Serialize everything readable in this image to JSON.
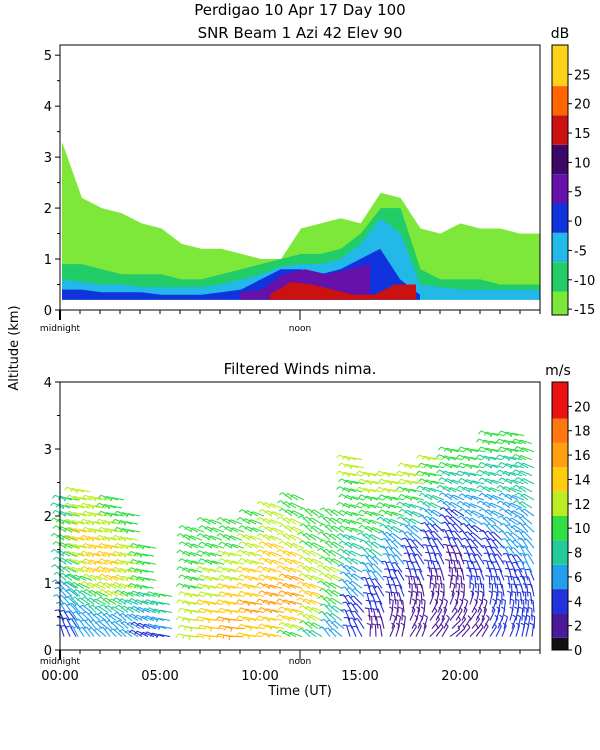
{
  "header": {
    "title_line1": "Perdigao  10 Apr 17 Day 100",
    "title_line2": "SNR Beam 1 Azi  42 Elev 90"
  },
  "shared": {
    "y_axis_label": "Altitude (km)",
    "x_axis_label": "Time (UT)",
    "x_ticks": [
      "00:00",
      "05:00",
      "10:00",
      "15:00",
      "20:00"
    ],
    "x_markers": [
      "midnight",
      "noon"
    ]
  },
  "chart_data": [
    {
      "type": "heatmap",
      "title": "SNR Beam 1 Azi  42 Elev 90",
      "xlabel": "Time (UT)",
      "ylabel": "Altitude (km)",
      "x_range_hours": [
        0,
        24
      ],
      "ylim": [
        0,
        5.2
      ],
      "y_ticks": [
        0,
        1,
        2,
        3,
        4,
        5
      ],
      "colorbar": {
        "unit": "dB",
        "range": [
          -16,
          30
        ],
        "tick_labels": [
          25,
          20,
          15,
          10,
          5,
          0,
          -5,
          -10,
          -15
        ],
        "bins": [
          {
            "from": -16,
            "to": -12,
            "color": "#7ee83a"
          },
          {
            "from": -12,
            "to": -7,
            "color": "#22cc66"
          },
          {
            "from": -7,
            "to": -2,
            "color": "#22b8e8"
          },
          {
            "from": -2,
            "to": 3,
            "color": "#1133dd"
          },
          {
            "from": 3,
            "to": 8,
            "color": "#6611aa"
          },
          {
            "from": 8,
            "to": 13,
            "color": "#3a0a66"
          },
          {
            "from": 13,
            "to": 18,
            "color": "#cc1111"
          },
          {
            "from": 18,
            "to": 23,
            "color": "#ff6600"
          },
          {
            "from": 23,
            "to": 30,
            "color": "#ffd21a"
          }
        ]
      },
      "regions": [
        {
          "level": -14,
          "t_start": 0.1,
          "t_end": 24,
          "alt_top": [
            3.3,
            2.2,
            2.0,
            1.9,
            1.7,
            1.6,
            1.3,
            1.2,
            1.2,
            1.1,
            1.0,
            1.0,
            1.6,
            1.7,
            1.8,
            1.7,
            2.3,
            2.2,
            1.6,
            1.5,
            1.7,
            1.6,
            1.6,
            1.5,
            1.5
          ]
        },
        {
          "level": -10,
          "t_start": 0.1,
          "t_end": 24,
          "alt_top": [
            0.9,
            0.9,
            0.8,
            0.7,
            0.7,
            0.7,
            0.6,
            0.6,
            0.7,
            0.8,
            0.9,
            1.0,
            1.1,
            1.1,
            1.2,
            1.5,
            2.0,
            2.0,
            0.8,
            0.6,
            0.6,
            0.6,
            0.5,
            0.5,
            0.5
          ]
        },
        {
          "level": -5,
          "t_start": 0.1,
          "t_end": 24,
          "alt_top": [
            0.6,
            0.55,
            0.5,
            0.5,
            0.45,
            0.45,
            0.45,
            0.45,
            0.5,
            0.6,
            0.7,
            0.85,
            0.9,
            0.9,
            1.0,
            1.3,
            1.8,
            1.5,
            0.5,
            0.45,
            0.4,
            0.4,
            0.4,
            0.4,
            0.4
          ]
        },
        {
          "level": 0,
          "t_start": 0.1,
          "t_end": 18,
          "alt_top": [
            0.4,
            0.4,
            0.35,
            0.35,
            0.35,
            0.3,
            0.3,
            0.3,
            0.35,
            0.4,
            0.6,
            0.8,
            0.8,
            0.7,
            0.8,
            1.0,
            1.2,
            0.6,
            0.3
          ]
        },
        {
          "level": 5,
          "t_start": 9.0,
          "t_end": 15.5,
          "alt_top": [
            0.35,
            0.4,
            0.7,
            0.8,
            0.7,
            0.8,
            0.9
          ]
        },
        {
          "level": 15,
          "t_start": 10.5,
          "t_end": 17.8,
          "alt_top": [
            0.3,
            0.55,
            0.5,
            0.4,
            0.3,
            0.3,
            0.5,
            0.5
          ]
        }
      ]
    },
    {
      "type": "scatter",
      "title": "Filtered Winds nima.",
      "xlabel": "Time (UT)",
      "ylabel": "Altitude (km)",
      "x_range_hours": [
        0,
        24
      ],
      "ylim": [
        0,
        4
      ],
      "y_ticks": [
        0,
        1,
        2,
        3,
        4
      ],
      "colorbar": {
        "unit": "m/s",
        "range": [
          0,
          22
        ],
        "tick_labels": [
          20,
          18,
          16,
          14,
          12,
          10,
          8,
          6,
          4,
          2,
          0
        ],
        "bins": [
          {
            "from": 0,
            "to": 1,
            "color": "#111111"
          },
          {
            "from": 1,
            "to": 3,
            "color": "#4a1a99"
          },
          {
            "from": 3,
            "to": 5,
            "color": "#2233dd"
          },
          {
            "from": 5,
            "to": 7,
            "color": "#22a0ee"
          },
          {
            "from": 7,
            "to": 9,
            "color": "#22cc99"
          },
          {
            "from": 9,
            "to": 11,
            "color": "#33dd44"
          },
          {
            "from": 11,
            "to": 13,
            "color": "#bbee22"
          },
          {
            "from": 13,
            "to": 15,
            "color": "#ffcc11"
          },
          {
            "from": 15,
            "to": 17,
            "color": "#ffa011"
          },
          {
            "from": 17,
            "to": 19,
            "color": "#ff7711"
          },
          {
            "from": 19,
            "to": 22,
            "color": "#ee1111"
          }
        ]
      },
      "wind_profiles": [
        {
          "t": 0.5,
          "alt_max": 2.2,
          "speed": [
            4,
            5,
            5,
            7,
            8,
            9,
            9,
            9,
            8
          ],
          "dir": [
            200,
            210,
            220,
            230,
            235,
            240,
            240,
            245,
            250
          ]
        },
        {
          "t": 1.2,
          "alt_max": 2.4,
          "speed": [
            5,
            6,
            8,
            10,
            12,
            13,
            13,
            12,
            11
          ],
          "dir": [
            210,
            220,
            230,
            240,
            245,
            250,
            250,
            250,
            250
          ]
        },
        {
          "t": 2.0,
          "alt_max": 2.3,
          "speed": [
            6,
            7,
            9,
            12,
            14,
            14,
            13,
            12,
            11
          ],
          "dir": [
            220,
            225,
            235,
            240,
            245,
            250,
            250,
            250,
            250
          ]
        },
        {
          "t": 2.8,
          "alt_max": 2.3,
          "speed": [
            5,
            7,
            10,
            13,
            14,
            14,
            12,
            11,
            10
          ],
          "dir": [
            220,
            230,
            235,
            240,
            245,
            250,
            250,
            250,
            250
          ]
        },
        {
          "t": 3.6,
          "alt_max": 2.0,
          "speed": [
            5,
            6,
            9,
            12,
            13,
            12,
            11,
            10
          ],
          "dir": [
            230,
            230,
            240,
            245,
            250,
            250,
            250,
            250
          ]
        },
        {
          "t": 4.4,
          "alt_max": 1.5,
          "speed": [
            4,
            6,
            8,
            10,
            11,
            10
          ],
          "dir": [
            240,
            240,
            245,
            250,
            250,
            250
          ]
        },
        {
          "t": 5.2,
          "alt_max": 0.8,
          "speed": [
            4,
            6,
            8,
            9
          ],
          "dir": [
            250,
            250,
            250,
            250
          ]
        },
        {
          "t": 6.8,
          "alt_max": 1.8,
          "speed": [
            12,
            13,
            12,
            11,
            10,
            10,
            10,
            9
          ],
          "dir": [
            260,
            255,
            250,
            250,
            245,
            245,
            240,
            240
          ]
        },
        {
          "t": 7.8,
          "alt_max": 1.9,
          "speed": [
            14,
            14,
            13,
            12,
            11,
            10,
            10,
            9
          ],
          "dir": [
            260,
            255,
            250,
            250,
            245,
            245,
            240,
            240
          ]
        },
        {
          "t": 8.8,
          "alt_max": 1.9,
          "speed": [
            15,
            15,
            14,
            13,
            12,
            11,
            10,
            10
          ],
          "dir": [
            260,
            255,
            250,
            250,
            245,
            245,
            240,
            240
          ]
        },
        {
          "t": 9.8,
          "alt_max": 2.0,
          "speed": [
            14,
            15,
            15,
            14,
            13,
            12,
            11,
            10
          ],
          "dir": [
            255,
            250,
            250,
            245,
            245,
            240,
            240,
            240
          ]
        },
        {
          "t": 10.8,
          "alt_max": 2.1,
          "speed": [
            13,
            15,
            16,
            15,
            14,
            13,
            12,
            11
          ],
          "dir": [
            250,
            250,
            245,
            245,
            240,
            240,
            240,
            240
          ]
        },
        {
          "t": 11.8,
          "alt_max": 2.2,
          "speed": [
            10,
            14,
            16,
            15,
            14,
            12,
            11,
            10
          ],
          "dir": [
            240,
            245,
            245,
            240,
            240,
            235,
            235,
            235
          ]
        },
        {
          "t": 12.8,
          "alt_max": 2.0,
          "speed": [
            8,
            12,
            14,
            13,
            12,
            11,
            10,
            10
          ],
          "dir": [
            230,
            235,
            240,
            240,
            235,
            235,
            230,
            230
          ]
        },
        {
          "t": 13.8,
          "alt_max": 2.0,
          "speed": [
            5,
            8,
            10,
            11,
            11,
            10,
            10,
            9
          ],
          "dir": [
            220,
            225,
            230,
            235,
            235,
            230,
            230,
            230
          ]
        },
        {
          "t": 14.8,
          "alt_max": 2.8,
          "speed": [
            3,
            4,
            5,
            6,
            8,
            9,
            10,
            10,
            11,
            11
          ],
          "dir": [
            200,
            210,
            220,
            230,
            235,
            240,
            245,
            245,
            250,
            250
          ]
        },
        {
          "t": 15.8,
          "alt_max": 2.6,
          "speed": [
            2,
            3,
            4,
            5,
            6,
            8,
            10,
            10,
            11,
            11
          ],
          "dir": [
            180,
            190,
            200,
            210,
            220,
            230,
            240,
            245,
            250,
            250
          ]
        },
        {
          "t": 16.8,
          "alt_max": 2.6,
          "speed": [
            2,
            2,
            3,
            4,
            5,
            6,
            8,
            10,
            11,
            11
          ],
          "dir": [
            160,
            170,
            190,
            200,
            210,
            220,
            235,
            245,
            250,
            250
          ]
        },
        {
          "t": 17.8,
          "alt_max": 2.7,
          "speed": [
            1,
            2,
            2,
            3,
            4,
            5,
            7,
            9,
            11,
            11
          ],
          "dir": [
            150,
            160,
            180,
            195,
            205,
            220,
            235,
            245,
            250,
            250
          ]
        },
        {
          "t": 18.8,
          "alt_max": 2.8,
          "speed": [
            1,
            1,
            2,
            3,
            3,
            4,
            6,
            8,
            10,
            11
          ],
          "dir": [
            140,
            150,
            170,
            190,
            200,
            215,
            230,
            240,
            250,
            250
          ]
        },
        {
          "t": 19.8,
          "alt_max": 2.9,
          "speed": [
            1,
            2,
            2,
            2,
            3,
            4,
            5,
            7,
            9,
            10
          ],
          "dir": [
            130,
            150,
            170,
            185,
            200,
            215,
            230,
            240,
            245,
            250
          ]
        },
        {
          "t": 20.8,
          "alt_max": 3.0,
          "speed": [
            2,
            2,
            3,
            3,
            3,
            4,
            5,
            6,
            8,
            9,
            10
          ],
          "dir": [
            140,
            150,
            170,
            190,
            205,
            220,
            230,
            240,
            245,
            250,
            250
          ]
        },
        {
          "t": 21.8,
          "alt_max": 3.2,
          "speed": [
            3,
            3,
            3,
            4,
            4,
            5,
            6,
            7,
            8,
            9,
            10
          ],
          "dir": [
            150,
            160,
            180,
            195,
            210,
            220,
            235,
            240,
            245,
            250,
            250
          ]
        },
        {
          "t": 22.8,
          "alt_max": 3.2,
          "speed": [
            3,
            3,
            4,
            4,
            5,
            5,
            6,
            7,
            8,
            9,
            10
          ],
          "dir": [
            160,
            170,
            185,
            200,
            215,
            225,
            235,
            240,
            245,
            250,
            250
          ]
        },
        {
          "t": 23.6,
          "alt_max": 3.1,
          "speed": [
            3,
            4,
            4,
            5,
            5,
            6,
            7,
            8,
            9,
            10
          ],
          "dir": [
            170,
            180,
            190,
            205,
            215,
            225,
            235,
            240,
            245,
            250
          ]
        }
      ]
    }
  ]
}
